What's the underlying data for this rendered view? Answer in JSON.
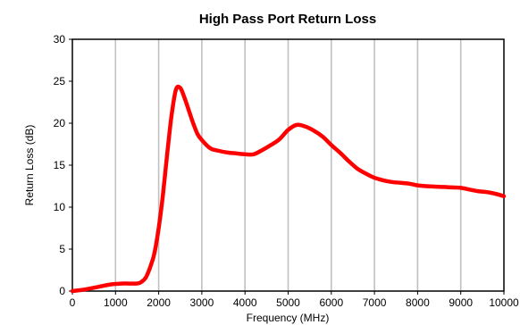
{
  "chart_data": {
    "type": "line",
    "title": "High Pass Port Return Loss",
    "xlabel": "Frequency (MHz)",
    "ylabel": "Return Loss (dB)",
    "xlim": [
      0,
      10000
    ],
    "ylim": [
      0,
      30
    ],
    "xticks": [
      0,
      1000,
      2000,
      3000,
      4000,
      5000,
      6000,
      7000,
      8000,
      9000,
      10000
    ],
    "yticks": [
      0,
      5,
      10,
      15,
      20,
      25,
      30
    ],
    "grid": "vertical",
    "legend": "none",
    "series": [
      {
        "color": "#ff0000",
        "x": [
          0,
          300,
          600,
          900,
          1200,
          1500,
          1600,
          1700,
          1800,
          1900,
          2000,
          2100,
          2200,
          2300,
          2400,
          2500,
          2600,
          2700,
          2800,
          2900,
          3000,
          3200,
          3400,
          3600,
          3800,
          4000,
          4200,
          4400,
          4600,
          4800,
          5000,
          5200,
          5400,
          5600,
          5800,
          6000,
          6200,
          6400,
          6600,
          6800,
          7000,
          7200,
          7400,
          7600,
          7800,
          8000,
          8200,
          8400,
          8600,
          8800,
          9000,
          9200,
          9400,
          9600,
          9800,
          10000
        ],
        "y": [
          0,
          0.2,
          0.5,
          0.8,
          0.9,
          0.9,
          1.1,
          1.6,
          2.8,
          4.5,
          7.5,
          11.5,
          16.5,
          21.0,
          24.0,
          24.2,
          23.0,
          21.5,
          20.0,
          18.7,
          18.0,
          17.0,
          16.7,
          16.5,
          16.4,
          16.3,
          16.3,
          16.8,
          17.4,
          18.1,
          19.2,
          19.8,
          19.6,
          19.1,
          18.4,
          17.4,
          16.5,
          15.5,
          14.6,
          14.0,
          13.5,
          13.2,
          13.0,
          12.9,
          12.8,
          12.6,
          12.5,
          12.45,
          12.4,
          12.35,
          12.3,
          12.1,
          11.9,
          11.8,
          11.6,
          11.3
        ]
      }
    ]
  }
}
